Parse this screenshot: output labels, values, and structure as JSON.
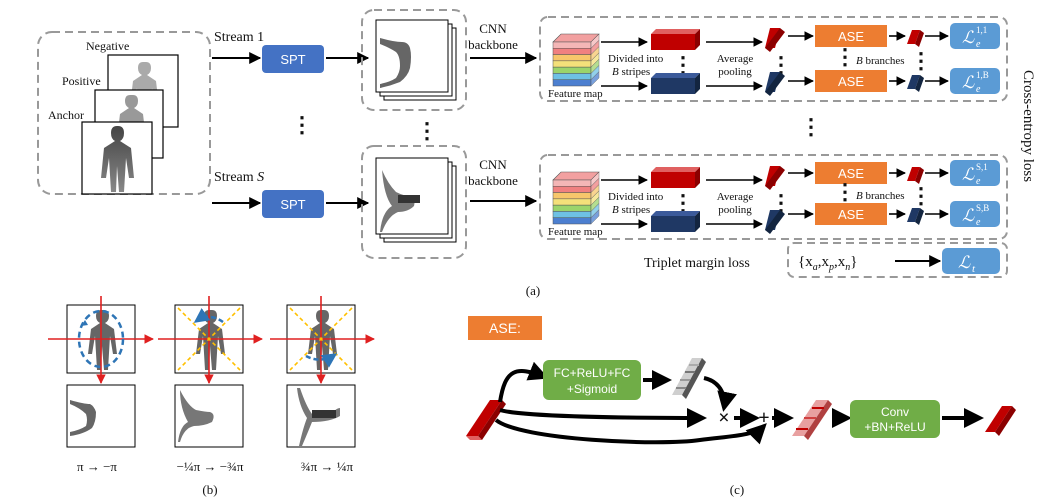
{
  "panel_a": {
    "input_labels": {
      "negative": "Negative",
      "positive": "Positive",
      "anchor": "Anchor"
    },
    "stream_1": "Stream 1",
    "stream_s_prefix": "Stream ",
    "stream_s_var": "S",
    "spt": "SPT",
    "cnn_line1": "CNN",
    "cnn_line2": "backbone",
    "feature_map": "Feature map",
    "divided_line1": "Divided into",
    "divided_var": "B",
    "divided_line2_rest": " stripes",
    "avg_line1": "Average",
    "avg_line2": "pooling",
    "ase": "ASE",
    "b_var": "B",
    "branches": " branches",
    "side_label": "Cross-entropy loss",
    "loss_symbol": "ℒ",
    "loss_sub": "e",
    "loss_sups": [
      "1,1",
      "1,B",
      "S,1",
      "S,B"
    ],
    "triplet_label": "Triplet margin loss",
    "triplet_set": "{x",
    "triplet_a": "a",
    "triplet_p": "p",
    "triplet_n": "n",
    "triplet_close": "}",
    "triplet_loss_sub": "t",
    "caption": "(a)"
  },
  "panel_b": {
    "labels": [
      "π → −π",
      "−¼π → −¾π",
      "¾π → ¼π"
    ],
    "caption": "(b)"
  },
  "panel_c": {
    "ase_tag": "ASE:",
    "fc_line1": "FC+ReLU+FC",
    "fc_line2": "+Sigmoid",
    "mult": "×",
    "plus": "+",
    "conv_line1": "Conv",
    "conv_line2": "+BN+ReLU",
    "caption": "(c)"
  },
  "colors": {
    "spt_blue": "#4472c4",
    "ase_orange": "#ed7d31",
    "loss_blue": "#5b9bd5",
    "green": "#70ad47",
    "red_stripe": "#c00000",
    "navy_stripe": "#1f3864",
    "axis_red": "#e02020",
    "dash_blue": "#2e75b6",
    "dash_yellow": "#ffc000"
  }
}
